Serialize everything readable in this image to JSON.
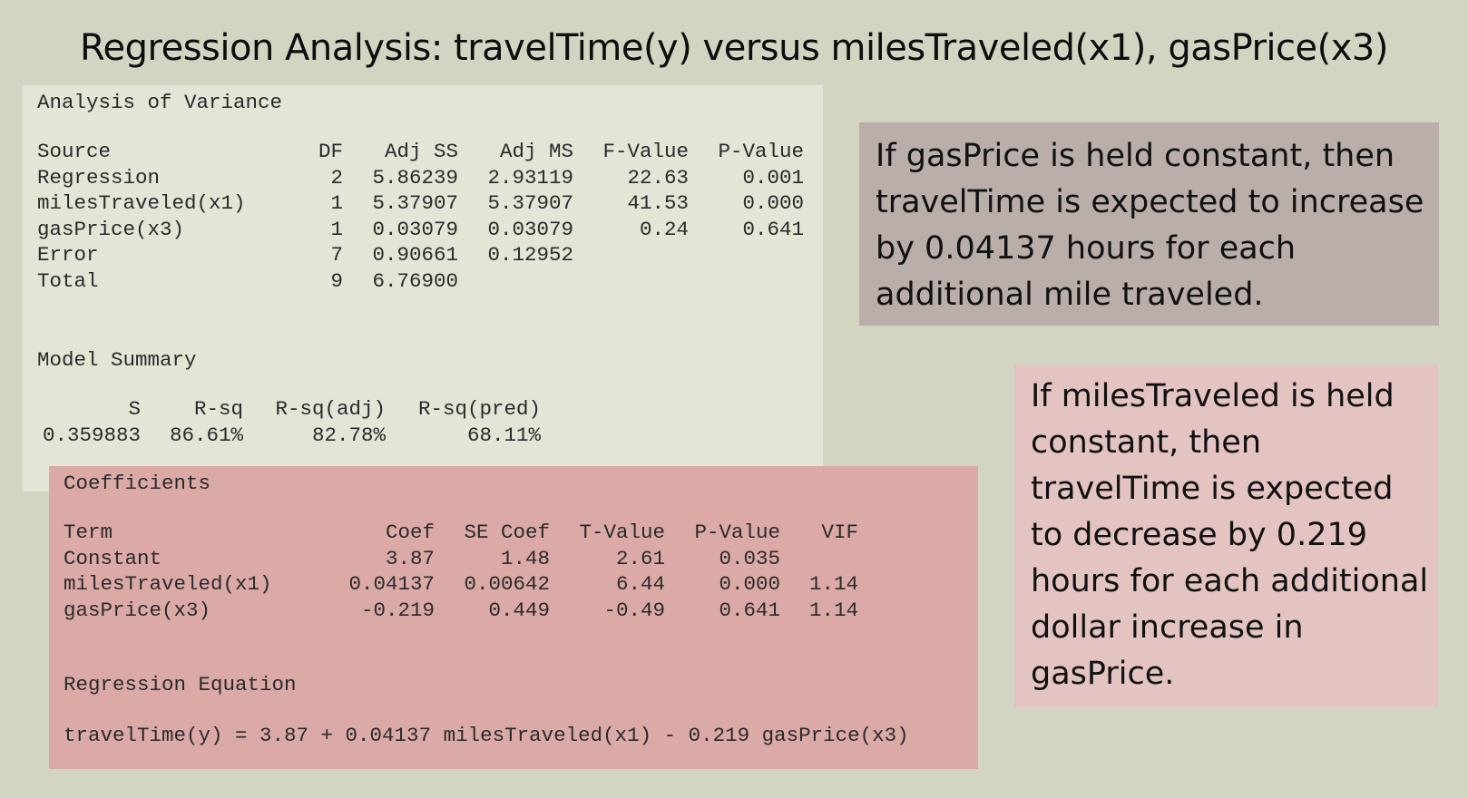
{
  "title": "Regression Analysis: travelTime(y) versus milesTraveled(x1), gasPrice(x3)",
  "anova": {
    "heading": "Analysis of Variance",
    "columns": [
      "Source",
      "DF",
      "Adj SS",
      "Adj MS",
      "F-Value",
      "P-Value"
    ],
    "rows": [
      {
        "source": "Regression",
        "df": "2",
        "adj_ss": "5.86239",
        "adj_ms": "2.93119",
        "f_value": "22.63",
        "p_value": "0.001"
      },
      {
        "source": "milesTraveled(x1)",
        "df": "1",
        "adj_ss": "5.37907",
        "adj_ms": "5.37907",
        "f_value": "41.53",
        "p_value": "0.000"
      },
      {
        "source": "gasPrice(x3)",
        "df": "1",
        "adj_ss": "0.03079",
        "adj_ms": "0.03079",
        "f_value": "0.24",
        "p_value": "0.641"
      },
      {
        "source": "Error",
        "df": "7",
        "adj_ss": "0.90661",
        "adj_ms": "0.12952",
        "f_value": "",
        "p_value": ""
      },
      {
        "source": "Total",
        "df": "9",
        "adj_ss": "6.76900",
        "adj_ms": "",
        "f_value": "",
        "p_value": ""
      }
    ]
  },
  "model_summary": {
    "heading": "Model Summary",
    "columns": [
      "S",
      "R-sq",
      "R-sq(adj)",
      "R-sq(pred)"
    ],
    "values": [
      "0.359883",
      "86.61%",
      "82.78%",
      "68.11%"
    ]
  },
  "coefficients": {
    "heading": "Coefficients",
    "columns": [
      "Term",
      "Coef",
      "SE Coef",
      "T-Value",
      "P-Value",
      "VIF"
    ],
    "rows": [
      {
        "term": "Constant",
        "coef": "3.87",
        "se_coef": "1.48",
        "t_value": "2.61",
        "p_value": "0.035",
        "vif": ""
      },
      {
        "term": "milesTraveled(x1)",
        "coef": "0.04137",
        "se_coef": "0.00642",
        "t_value": "6.44",
        "p_value": "0.000",
        "vif": "1.14"
      },
      {
        "term": "gasPrice(x3)",
        "coef": "-0.219",
        "se_coef": "0.449",
        "t_value": "-0.49",
        "p_value": "0.641",
        "vif": "1.14"
      }
    ]
  },
  "regression_equation": {
    "heading": "Regression Equation",
    "equation": "travelTime(y) = 3.87 + 0.04137 milesTraveled(x1) - 0.219 gasPrice(x3)"
  },
  "notes": {
    "gas_price_constant": "If gasPrice is held constant, then travelTime is expected to increase by 0.04137 hours for each additional mile traveled.",
    "miles_constant": "If milesTraveled is held constant, then travelTime is expected to decrease by 0.219 hours for each additional dollar increase in gasPrice."
  },
  "colors": {
    "background": "#d3d5c3",
    "anova_panel": "#e3e5d7",
    "coefficients_panel": "#dbaaa7",
    "gas_note": "#baaeab",
    "miles_note": "#e3c4c2"
  }
}
